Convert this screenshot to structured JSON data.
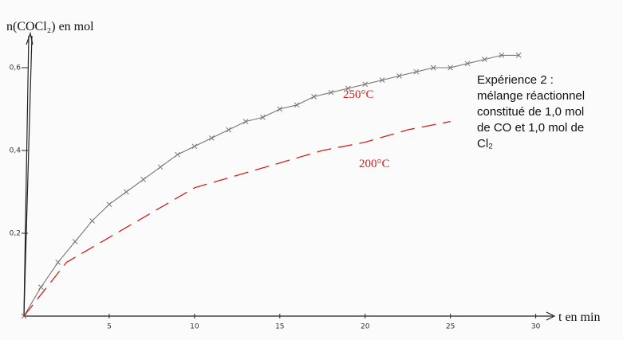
{
  "chart_data": {
    "type": "line",
    "y_label": "n(COCl₂) en mol",
    "x_label": "t en min",
    "xlim": [
      0,
      31
    ],
    "ylim": [
      0,
      0.68
    ],
    "xticks": [
      5,
      10,
      15,
      20,
      25,
      30
    ],
    "yticks": [
      {
        "value": 0.2,
        "label": "0,2"
      },
      {
        "value": 0.4,
        "label": "0,4"
      },
      {
        "value": 0.6,
        "label": "0,6"
      }
    ],
    "series": [
      {
        "name": "250°C",
        "color": "#777777",
        "style": "solid-cross",
        "x": [
          0,
          1,
          2,
          3,
          4,
          5,
          6,
          7,
          8,
          9,
          10,
          11,
          12,
          13,
          14,
          15,
          16,
          17,
          18,
          19,
          20,
          21,
          22,
          23,
          24,
          25,
          26,
          27,
          28,
          29
        ],
        "values": [
          0,
          0.07,
          0.13,
          0.18,
          0.23,
          0.27,
          0.3,
          0.33,
          0.36,
          0.39,
          0.41,
          0.43,
          0.45,
          0.47,
          0.48,
          0.5,
          0.51,
          0.53,
          0.54,
          0.55,
          0.56,
          0.57,
          0.58,
          0.59,
          0.6,
          0.6,
          0.61,
          0.62,
          0.63,
          0.63
        ]
      },
      {
        "name": "200°C",
        "color": "#d0201e",
        "style": "dashed",
        "x": [
          0,
          2.5,
          5,
          7.5,
          10,
          12.5,
          15,
          17.5,
          20,
          22.5,
          25
        ],
        "values": [
          0,
          0.13,
          0.19,
          0.25,
          0.31,
          0.34,
          0.37,
          0.4,
          0.42,
          0.45,
          0.47
        ]
      }
    ],
    "text_box": [
      "Expérience 2 :",
      "mélange réactionnel",
      "constitué de 1,0 mol",
      "de CO et 1,0 mol de",
      "Cl₂"
    ]
  }
}
